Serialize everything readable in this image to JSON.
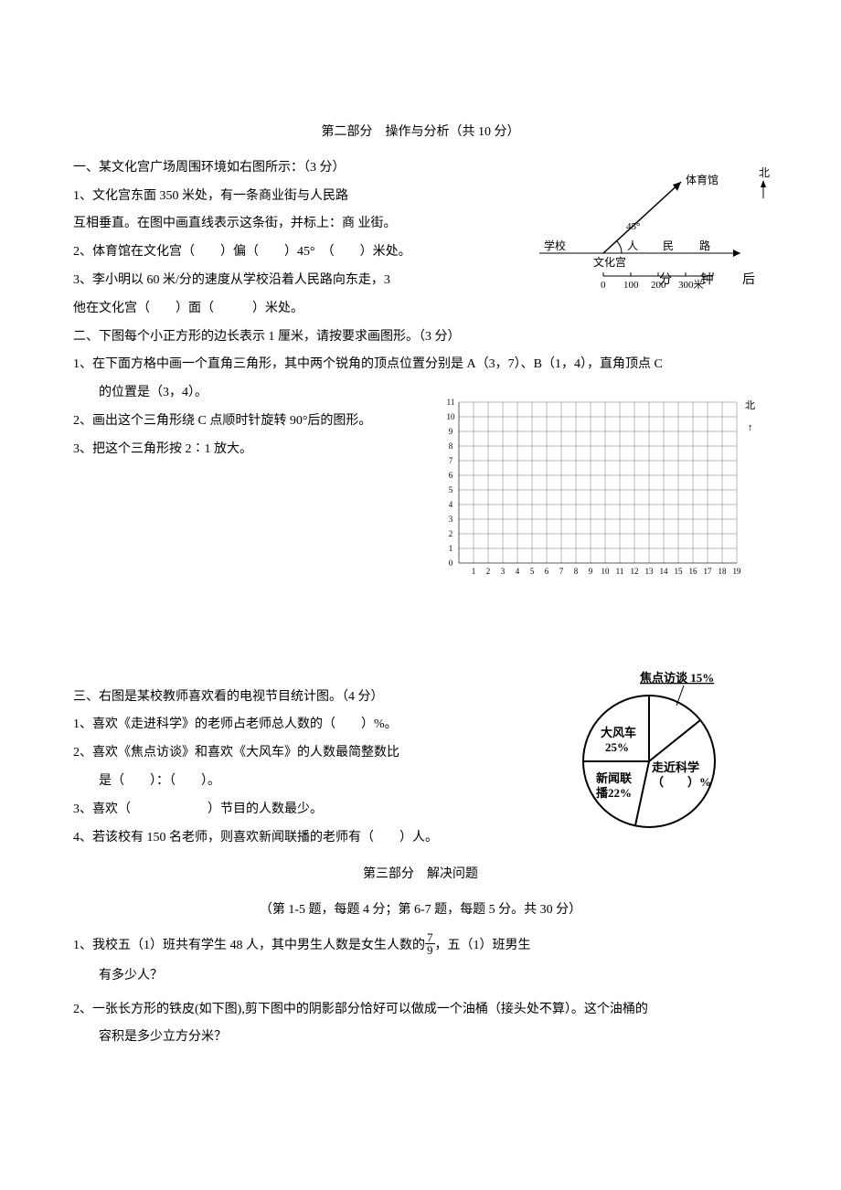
{
  "part2": {
    "title": "第二部分　操作与分析（共 10 分）",
    "q1": {
      "heading": "一、某文化宫广场周围环境如右图所示：（3 分）",
      "l1": "1、文化宫东面 350 米处，有一条商业街与人民路",
      "l2": "互相垂直。在图中画直线表示这条街，并标上：商 业街。",
      "l3": "2、体育馆在文化宫（　　）偏（　　）45°　（　　）米处。",
      "l4a": "3、李小明以 60 米/分的速度从学校沿着人民路向东走，3",
      "l4b": "分 钟 后",
      "l5": "他在文化宫（　　）面（　　　）米处。",
      "map": {
        "school": "学校",
        "gym": "体育馆",
        "palace": "文化宫",
        "roadA": "人",
        "roadB": "民",
        "roadC": "路",
        "angle": "45°",
        "north": "北",
        "scale0": "0",
        "scale1": "100",
        "scale2": "200",
        "scale3": "300米"
      }
    },
    "q2": {
      "heading": "二、下图每个小正方形的边长表示 1 厘米，请按要求画图形。（3 分）",
      "l1": "1、在下面方格中画一个直角三角形，其中两个锐角的顶点位置分别是 A（3，7）、B（1，4），直角顶点 C",
      "l1b": "的位置是（3，4）。",
      "l2": "2、画出这个三角形绕 C 点顺时针旋转 90°后的图形。",
      "l3": "3、把这个三角形按 2∶1 放大。",
      "grid": {
        "xmax": 19,
        "ymax": 11,
        "cell": 16,
        "xlabels": [
          "1",
          "2",
          "3",
          "4",
          "5",
          "6",
          "7",
          "8",
          "9",
          "10",
          "11",
          "12",
          "13",
          "14",
          "15",
          "16",
          "17",
          "18",
          "19"
        ],
        "ylabels": [
          "0",
          "1",
          "2",
          "3",
          "4",
          "5",
          "6",
          "7",
          "8",
          "9",
          "10",
          "11"
        ],
        "north": "北"
      }
    },
    "q3": {
      "heading": "三、右图是某校教师喜欢看的电视节目统计图。（4 分）",
      "l1": "1、喜欢《走进科学》的老师占老师总人数的（　　）%。",
      "l2": "2、喜欢《焦点访谈》和喜欢《大风车》的人数最简整数比",
      "l2b": "是（　　）：（　　）。",
      "l3": "3、喜欢（　　　　　　）节目的人数最少。",
      "l4": "4、若该校有 150 名老师，则喜欢新闻联播的老师有（　　）人。",
      "pie": {
        "focus": "焦点访谈 15%",
        "wind": "大风车",
        "wind2": "25%",
        "news": "新闻联",
        "news2": "播22%",
        "science": "走近科学",
        "science2": "（　　）%"
      }
    }
  },
  "part3": {
    "title": "第三部分　解决问题",
    "subtitle": "（第 1-5 题，每题 4 分；第 6-7 题，每题 5 分。共 30 分）",
    "q1a": "1、我校五（1）班共有学生 48 人，其中男生人数是女生人数的",
    "q1b": "，五（1）班男生",
    "q1c": "有多少人？",
    "frac_num": "7",
    "frac_den": "9",
    "q2": "2、一张长方形的铁皮(如下图),剪下图中的阴影部分恰好可以做成一个油桶（接头处不算）。这个油桶的",
    "q2b": "容积是多少立方分米？"
  }
}
